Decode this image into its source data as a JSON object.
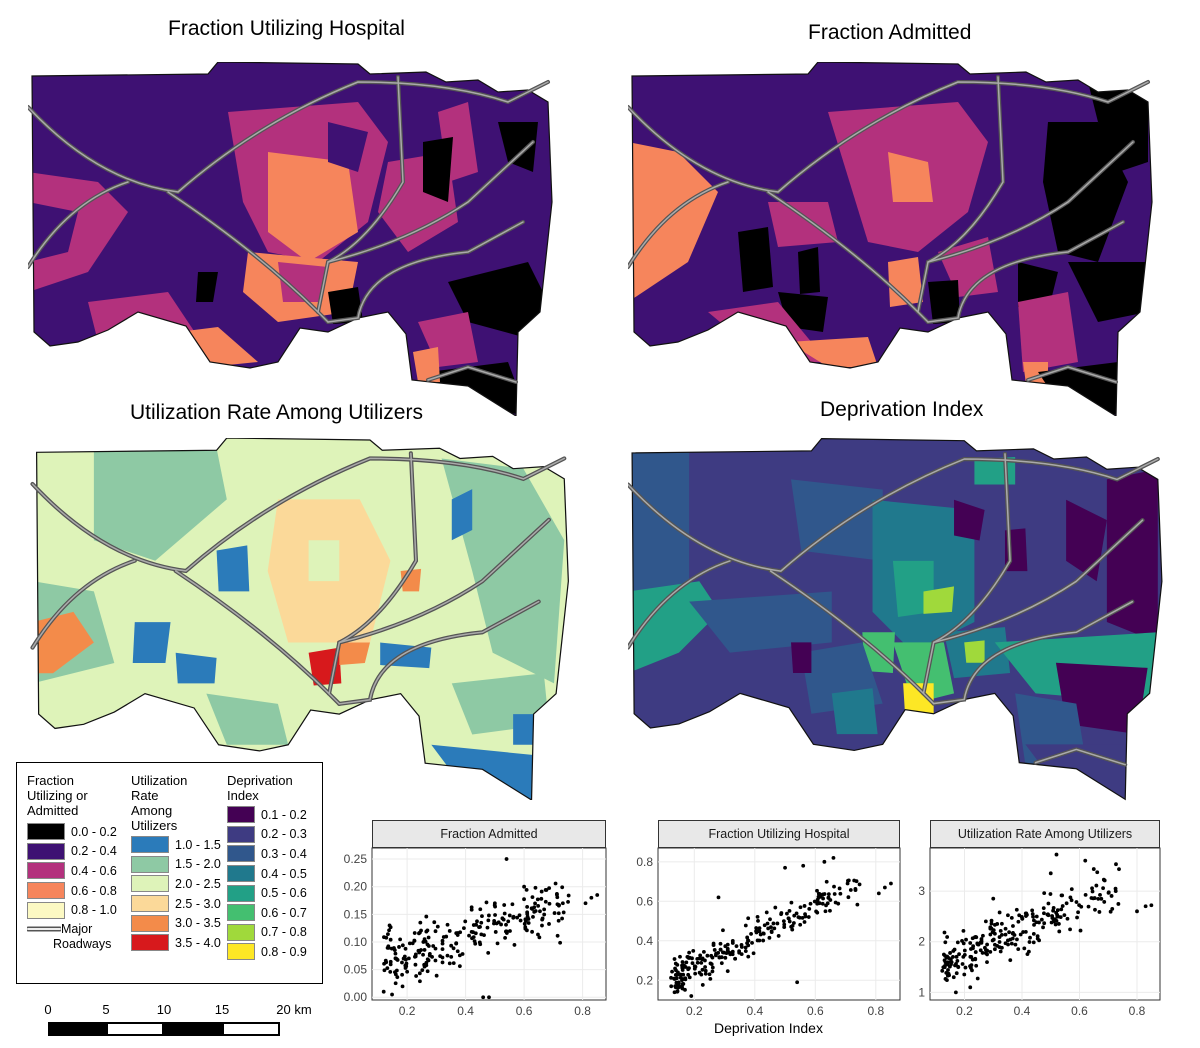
{
  "titles": {
    "frac_util": "Fraction Utilizing Hospital",
    "frac_admit": "Fraction Admitted",
    "util_rate": "Utilization Rate Among Utilizers",
    "deprivation": "Deprivation Index"
  },
  "legend": {
    "col1_title": [
      "Fraction",
      "Utilizing or",
      "Admitted"
    ],
    "col1_items": [
      {
        "label": "0.0 - 0.2",
        "color": "#000000"
      },
      {
        "label": "0.2 - 0.4",
        "color": "#3e1173"
      },
      {
        "label": "0.4 - 0.6",
        "color": "#b3317d"
      },
      {
        "label": "0.6 - 0.8",
        "color": "#f6855c"
      },
      {
        "label": "0.8 - 1.0",
        "color": "#fcf9c3"
      }
    ],
    "roadways_label": [
      "Major",
      "Roadways"
    ],
    "col2_title": [
      "Utilization",
      "Rate",
      "Among",
      "Utilizers"
    ],
    "col2_items": [
      {
        "label": "1.0 - 1.5",
        "color": "#2b7bba"
      },
      {
        "label": "1.5 - 2.0",
        "color": "#8ec9a4"
      },
      {
        "label": "2.0 - 2.5",
        "color": "#def3b9"
      },
      {
        "label": "2.5 - 3.0",
        "color": "#fbd999"
      },
      {
        "label": "3.0 - 3.5",
        "color": "#f38b4a"
      },
      {
        "label": "3.5 - 4.0",
        "color": "#d7191c"
      }
    ],
    "col3_title": [
      "Deprivation",
      "Index"
    ],
    "col3_items": [
      {
        "label": "0.1 - 0.2",
        "color": "#440154"
      },
      {
        "label": "0.2 - 0.3",
        "color": "#3e3b82"
      },
      {
        "label": "0.3 - 0.4",
        "color": "#30578c"
      },
      {
        "label": "0.4 - 0.5",
        "color": "#20798d"
      },
      {
        "label": "0.5 - 0.6",
        "color": "#22a086"
      },
      {
        "label": "0.6 - 0.7",
        "color": "#44bf70"
      },
      {
        "label": "0.7 - 0.8",
        "color": "#a0d93b"
      },
      {
        "label": "0.8 - 0.9",
        "color": "#fde725"
      }
    ]
  },
  "scale_bar": {
    "ticks": [
      "0",
      "5",
      "10",
      "15",
      "20 km"
    ],
    "tick_km": [
      0,
      5,
      10,
      15,
      20
    ]
  },
  "shared_xlabel": "Deprivation Index",
  "chart_data": [
    {
      "type": "scatter",
      "title": "Fraction Admitted",
      "xlabel": "Deprivation Index",
      "ylabel": "",
      "xlim": [
        0.08,
        0.88
      ],
      "ylim": [
        -0.005,
        0.27
      ],
      "xticks": [
        0.2,
        0.4,
        0.6,
        0.8
      ],
      "yticks": [
        0.0,
        0.05,
        0.1,
        0.15,
        0.2,
        0.25
      ],
      "ytick_labels": [
        "0.00",
        "0.05",
        "0.10",
        "0.15",
        "0.20",
        "0.25"
      ],
      "seed": 11,
      "generator": {
        "slope": 0.17,
        "intercept": 0.045,
        "noise": 0.032
      },
      "extra_points": [
        [
          0.54,
          0.25
        ],
        [
          0.46,
          0.0
        ],
        [
          0.48,
          0.0
        ],
        [
          0.12,
          0.01
        ],
        [
          0.83,
          0.18
        ],
        [
          0.85,
          0.185
        ],
        [
          0.81,
          0.17
        ],
        [
          0.14,
          0.13
        ],
        [
          0.5,
          0.17
        ],
        [
          0.6,
          0.2
        ]
      ]
    },
    {
      "type": "scatter",
      "title": "Fraction Utilizing Hospital",
      "xlabel": "Deprivation Index",
      "ylabel": "",
      "xlim": [
        0.08,
        0.88
      ],
      "ylim": [
        0.1,
        0.87
      ],
      "xticks": [
        0.2,
        0.4,
        0.6,
        0.8
      ],
      "yticks": [
        0.2,
        0.4,
        0.6,
        0.8
      ],
      "ytick_labels": [
        "0.2",
        "0.4",
        "0.6",
        "0.8"
      ],
      "seed": 23,
      "generator": {
        "slope": 0.8,
        "intercept": 0.1,
        "noise": 0.06
      },
      "extra_points": [
        [
          0.19,
          0.12
        ],
        [
          0.66,
          0.82
        ],
        [
          0.54,
          0.19
        ],
        [
          0.56,
          0.78
        ],
        [
          0.83,
          0.67
        ],
        [
          0.85,
          0.69
        ],
        [
          0.81,
          0.64
        ],
        [
          0.28,
          0.62
        ],
        [
          0.5,
          0.77
        ],
        [
          0.63,
          0.8
        ]
      ]
    },
    {
      "type": "scatter",
      "title": "Utilization Rate Among Utilizers",
      "xlabel": "Deprivation Index",
      "ylabel": "",
      "xlim": [
        0.08,
        0.88
      ],
      "ylim": [
        0.85,
        3.85
      ],
      "xticks": [
        0.2,
        0.4,
        0.6,
        0.8
      ],
      "yticks": [
        1,
        2,
        3
      ],
      "ytick_labels": [
        "1",
        "2",
        "3"
      ],
      "seed": 37,
      "generator": {
        "slope": 2.6,
        "intercept": 1.2,
        "noise": 0.28
      },
      "extra_points": [
        [
          0.52,
          3.72
        ],
        [
          0.17,
          1.0
        ],
        [
          0.14,
          1.55
        ],
        [
          0.22,
          1.1
        ],
        [
          0.83,
          2.7
        ],
        [
          0.85,
          2.72
        ],
        [
          0.8,
          2.6
        ],
        [
          0.5,
          3.35
        ],
        [
          0.62,
          3.6
        ],
        [
          0.3,
          2.85
        ]
      ]
    }
  ]
}
